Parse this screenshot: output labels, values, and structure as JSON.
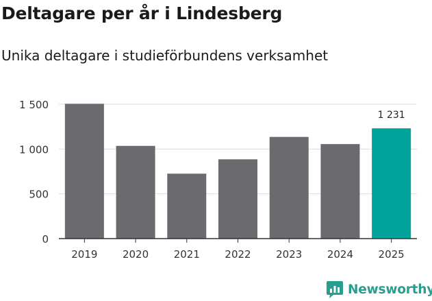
{
  "title": "Deltagare per år i Lindesberg",
  "subtitle": "Unika deltagare i studieförbundens verksamhet",
  "brand": {
    "name": "Newsworthy",
    "icon": "newsworthy-logo-icon",
    "color": "#2a9d8f"
  },
  "colors": {
    "bar": "#6b6a6f",
    "highlight": "#00a39a",
    "grid": "#dddddd",
    "axis": "#333333"
  },
  "chart_data": {
    "type": "bar",
    "title": "Deltagare per år i Lindesberg",
    "subtitle": "Unika deltagare i studieförbundens verksamhet",
    "xlabel": "",
    "ylabel": "",
    "categories": [
      "2019",
      "2020",
      "2021",
      "2022",
      "2023",
      "2024",
      "2025"
    ],
    "values": [
      1505,
      1035,
      725,
      885,
      1135,
      1055,
      1231
    ],
    "highlight_index": 6,
    "data_labels": [
      {
        "index": 6,
        "text": "1 231"
      }
    ],
    "ylim": [
      0,
      1500
    ],
    "yticks": [
      0,
      500,
      1000,
      1500
    ],
    "ytick_labels": [
      "0",
      "500",
      "1 000",
      "1 500"
    ],
    "grid": true
  }
}
